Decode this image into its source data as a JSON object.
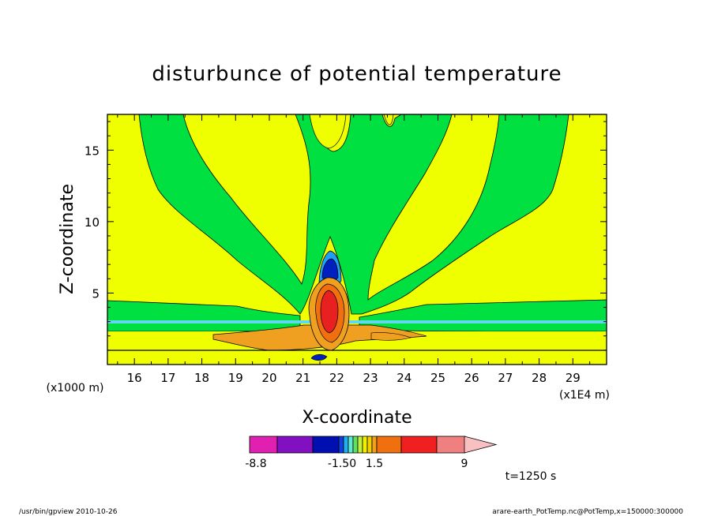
{
  "chart_data": {
    "type": "heatmap",
    "title": "disturbunce of potential temperature",
    "xlabel": "X-coordinate",
    "ylabel": "Z-coordinate",
    "x_unit_left": "(x1000 m)",
    "x_unit_right": "(x1E4 m)",
    "xlim": [
      15.2,
      30.0
    ],
    "ylim": [
      0,
      17.5
    ],
    "x_ticks": [
      "16",
      "17",
      "18",
      "19",
      "20",
      "21",
      "22",
      "23",
      "24",
      "25",
      "26",
      "27",
      "28",
      "29"
    ],
    "y_ticks": [
      "5",
      "10",
      "15"
    ],
    "colorbar": {
      "label_values": [
        "-8.8",
        "-1.50",
        "1.5",
        "9"
      ],
      "colors": [
        "#e020b0",
        "#8010c0",
        "#0010b0",
        "#1040e0",
        "#20b0f0",
        "#60e8d0",
        "#60e060",
        "#c0f040",
        "#f0f000",
        "#f0d000",
        "#f0a020",
        "#f07010",
        "#f02020",
        "#f08080",
        "#f8c0c0"
      ]
    },
    "time_label": "t=1250 s",
    "field_colors": {
      "background": "#f0ff00",
      "negative_small": "#00e040",
      "positive_small": "#f0a020",
      "positive_mid": "#f07010",
      "positive_high": "#e82020",
      "negative_mid": "#20a0f0",
      "negative_high": "#0020c0",
      "negative_strong": "#6000b0"
    }
  },
  "footer": {
    "left": "/usr/bin/gpview   2010-10-26",
    "right": "arare-earth_PotTemp.nc@PotTemp,x=150000:300000"
  }
}
